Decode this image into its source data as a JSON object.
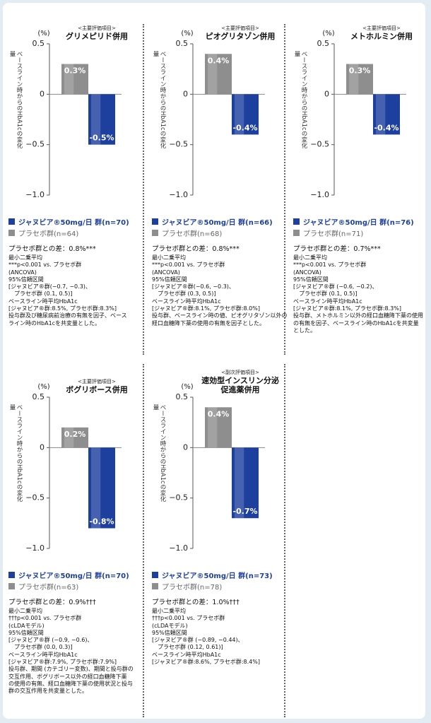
{
  "chart_data": [
    {
      "type": "bar",
      "subtitle": "<主要評価項目>",
      "title": "グリメピリド併用",
      "y_unit": "(%)",
      "ylabel": "ベースライン時からのHbA1cの変化量",
      "ylim": [
        -1,
        0.5
      ],
      "yticks": [
        0.5,
        0,
        {
          "value": -0.5,
          "label": "−0.5"
        },
        {
          "value": -1,
          "label": "−1.0"
        }
      ],
      "series": [
        {
          "name": "ジャヌビア®50mg/日 群(n=70)",
          "color": "#1d3f9e",
          "values": [
            -0.5
          ],
          "value_labels": [
            "-0.5%"
          ]
        },
        {
          "name": "プラセボ群(n=64)",
          "color": "#8e8e8e",
          "values": [
            0.3
          ],
          "value_labels": [
            "0.3%"
          ]
        }
      ],
      "difference": "プラセボ群との差：0.8%***",
      "notes": [
        "最小二乗平均",
        "***p<0.001 vs. プラセボ群",
        "(ANCOVA)",
        "95%信頼区間",
        "[ジャヌビア®群(−0.7, −0.3)、",
        "　プラセボ群 (0.1, 0.5)]",
        "ベースライン時平均HbA1c",
        "[ジャヌビア®群:8.5%, プラセボ群:8.3%]",
        "投与群及び糖尿病前治療の有無を因子、ベース",
        "ライン時のHbA1cを共変量とした。"
      ]
    },
    {
      "type": "bar",
      "subtitle": "<主要評価項目>",
      "title": "ピオグリタゾン併用",
      "y_unit": "(%)",
      "ylabel": "ベースライン時からのHbA1cの変化量",
      "ylim": [
        -1,
        0.5
      ],
      "yticks": [
        0.5,
        0,
        {
          "value": -0.5,
          "label": "−0.5"
        },
        {
          "value": -1,
          "label": "−1.0"
        }
      ],
      "series": [
        {
          "name": "ジャヌビア®50mg/日 群(n=66)",
          "color": "#1d3f9e",
          "values": [
            -0.4
          ],
          "value_labels": [
            "-0.4%"
          ]
        },
        {
          "name": "プラセボ群(n=68)",
          "color": "#8e8e8e",
          "values": [
            0.4
          ],
          "value_labels": [
            "0.4%"
          ]
        }
      ],
      "difference": "プラセボ群との差：0.8%***",
      "notes": [
        "最小二乗平均",
        "***p<0.001 vs. プラセボ群",
        "(ANCOVA)",
        "95%信頼区間",
        "[ジャヌビア®群(−0.6, −0.3)、",
        "　プラセボ群 (0.3, 0.5)]",
        "ベースライン時平均HbA1c",
        "[ジャヌビア®群:8.1%, プラセボ群:8.0%]",
        "投与群、ベースライン時の値、ピオグリタゾン以外の",
        "経口血糖降下薬の使用の有無を因子とした。"
      ]
    },
    {
      "type": "bar",
      "subtitle": "<主要評価項目>",
      "title": "メトホルミン併用",
      "y_unit": "(%)",
      "ylabel": "ベースライン時からのHbA1cの変化量",
      "ylim": [
        -1,
        0.5
      ],
      "yticks": [
        0.5,
        0,
        {
          "value": -0.5,
          "label": "−0.5"
        },
        {
          "value": -1,
          "label": "−1.0"
        }
      ],
      "series": [
        {
          "name": "ジャヌビア®50mg/日 群(n=76)",
          "color": "#1d3f9e",
          "values": [
            -0.4
          ],
          "value_labels": [
            "-0.4%"
          ]
        },
        {
          "name": "プラセボ群(n=71)",
          "color": "#8e8e8e",
          "values": [
            0.3
          ],
          "value_labels": [
            "0.3%"
          ]
        }
      ],
      "difference": "プラセボ群との差：0.7%***",
      "notes": [
        "最小二乗平均",
        "***p<0.001 vs. プラセボ群",
        "(ANCOVA)",
        "95%信頼区間",
        "[ジャヌビア®群 (−0.6, −0.2)、",
        "　プラセボ群 (0.1, 0.5)]",
        "ベースライン時平均HbA1c",
        "[ジャヌビア®群:8.1%, プラセボ群:8.3%]",
        "投与群、メトホルミン以外の経口血糖降下薬の使用",
        "の有無を因子、ベースライン時のHbA1cを共変量",
        "とした。"
      ]
    },
    {
      "type": "bar",
      "subtitle": "<主要評価項目>",
      "title": "ボグリボース併用",
      "y_unit": "(%)",
      "ylabel": "ベースライン時からのHbA1cの変化量",
      "ylim": [
        -1,
        0.5
      ],
      "yticks": [
        0.5,
        0,
        {
          "value": -0.5,
          "label": "−0.5"
        },
        {
          "value": -1,
          "label": "−1.0"
        }
      ],
      "series": [
        {
          "name": "ジャヌビア®50mg/日 群(n=70)",
          "color": "#1d3f9e",
          "values": [
            -0.8
          ],
          "value_labels": [
            "-0.8%"
          ]
        },
        {
          "name": "プラセボ群(n=63)",
          "color": "#8e8e8e",
          "values": [
            0.2
          ],
          "value_labels": [
            "0.2%"
          ]
        }
      ],
      "difference": "プラセボ群との差：0.9%†††",
      "notes": [
        "最小二乗平均",
        "†††p<0.001 vs. プラセボ群",
        "(cLDAモデル)",
        "95%信頼区間",
        "[ジャヌビア®群 (−0.9, −0.6)、",
        "　プラセボ群 (0.0, 0.3)]",
        "ベースライン時平均HbA1c",
        "[ジャヌビア®群:7.9%, プラセボ群:7.9%]",
        "投与群、期間 (カテゴリー変数)、期間と投与群の",
        "交互作用、ボグリボース以外の経口血糖降下薬",
        "の使用の有無、経口血糖降下薬の使用状況と投与",
        "群の交互作用を共変量とした。"
      ]
    },
    {
      "type": "bar",
      "subtitle": "<副次評価項目>",
      "title": "速効型インスリン分泌促進薬併用",
      "y_unit": "(%)",
      "ylabel": "ベースライン時からのHbA1cの変化量",
      "ylim": [
        -1,
        0.5
      ],
      "yticks": [
        0.5,
        0,
        {
          "value": -0.5,
          "label": "−0.5"
        },
        {
          "value": -1,
          "label": "−1.0"
        }
      ],
      "series": [
        {
          "name": "ジャヌビア®50mg/日 群(n=73)",
          "color": "#1d3f9e",
          "values": [
            -0.7
          ],
          "value_labels": [
            "-0.7%"
          ]
        },
        {
          "name": "プラセボ群(n=78)",
          "color": "#8e8e8e",
          "values": [
            0.4
          ],
          "value_labels": [
            "0.4%"
          ]
        }
      ],
      "difference": "プラセボ群との差：1.0%†††",
      "notes": [
        "最小二乗平均",
        "†††p<0.001 vs. プラセボ群",
        "(cLDAモデル)",
        "95%信頼区間",
        "[ジャヌビア®群 (−0.89, −0.44)、",
        "　プラセボ群 (0.12, 0.61)]",
        "ベースライン時平均HbA1c",
        "[ジャヌビア®群:8.6%, プラセボ群:8.4%]"
      ]
    }
  ]
}
